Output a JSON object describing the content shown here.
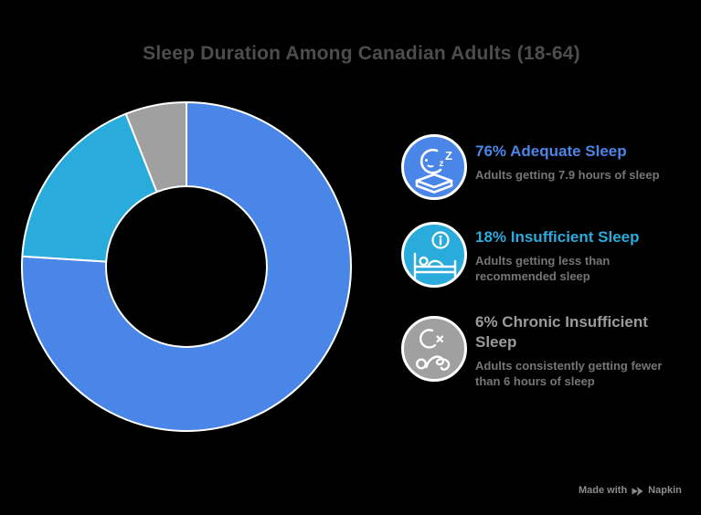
{
  "page": {
    "background_color": "#000000",
    "title_color": "#4d4d4d"
  },
  "title": "Sleep Duration Among Canadian Adults (18-64)",
  "chart_data": {
    "type": "pie",
    "subtype": "donut",
    "title": "Sleep Duration Among Canadian Adults (18-64)",
    "start_angle_deg": 0,
    "direction": "clockwise",
    "inner_radius_ratio": 0.49,
    "slice_border_color": "#ffffff",
    "legend_position": "right",
    "series": [
      {
        "name": "Adequate Sleep",
        "value": 76,
        "color": "#4a86e8"
      },
      {
        "name": "Insufficient Sleep",
        "value": 18,
        "color": "#29abdc"
      },
      {
        "name": "Chronic Insufficient Sleep",
        "value": 6,
        "color": "#a0a0a0"
      }
    ]
  },
  "legend": {
    "items": [
      {
        "title": "76% Adequate Sleep",
        "description": "Adults getting 7.9 hours of sleep",
        "color": "#4a86e8",
        "icon": "moon-zzz-mattress-icon"
      },
      {
        "title": "18% Insufficient Sleep",
        "description": "Adults getting less than recommended sleep",
        "color": "#29abdc",
        "icon": "bed-person-info-icon"
      },
      {
        "title": "6% Chronic Insufficient Sleep",
        "description": "Adults consistently getting fewer than 6 hours of sleep",
        "color": "#9b9b9b",
        "icon": "moon-restless-sleeper-icon"
      }
    ]
  },
  "footer": {
    "made_with_label": "Made with",
    "brand_label": "Napkin",
    "color": "#8c8c8c"
  }
}
